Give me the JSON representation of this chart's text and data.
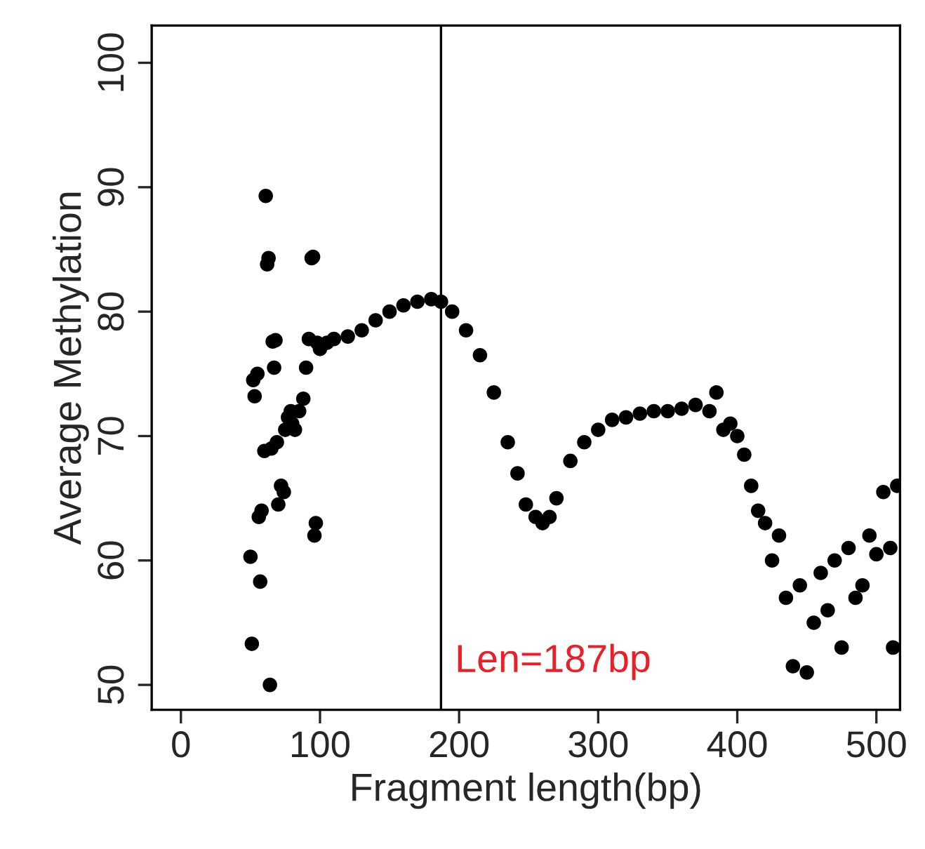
{
  "chart_data": {
    "type": "scatter",
    "xlabel": "Fragment length(bp)",
    "ylabel": "Average Methylation",
    "x": [
      50,
      51,
      52,
      53,
      55,
      56,
      57,
      58,
      60,
      61,
      62,
      63,
      64,
      65,
      66,
      67,
      68,
      69,
      70,
      72,
      74,
      75,
      77,
      79,
      80,
      82,
      85,
      88,
      90,
      92,
      94,
      95,
      96,
      97,
      98,
      100,
      105,
      110,
      120,
      130,
      140,
      150,
      160,
      170,
      180,
      187,
      195,
      205,
      215,
      225,
      235,
      242,
      248,
      255,
      260,
      265,
      270,
      280,
      290,
      300,
      310,
      320,
      330,
      340,
      350,
      360,
      370,
      380,
      385,
      390,
      395,
      400,
      405,
      410,
      415,
      420,
      425,
      430,
      435,
      440,
      445,
      450,
      455,
      460,
      465,
      470,
      475,
      480,
      485,
      490,
      495,
      500,
      505,
      510,
      512,
      515
    ],
    "series": [
      {
        "color": "#000000",
        "values": [
          60.3,
          53.3,
          74.5,
          73.2,
          75,
          63.5,
          58.3,
          64,
          68.8,
          89.3,
          83.8,
          84.3,
          50,
          69,
          77.6,
          75.5,
          77.7,
          69.5,
          64.5,
          66,
          65.5,
          70.5,
          71.5,
          72,
          71,
          70.5,
          72,
          73,
          75.5,
          77.8,
          84.3,
          84.4,
          62,
          63,
          77.5,
          77,
          77.5,
          77.8,
          78,
          78.5,
          79.3,
          80,
          80.5,
          80.8,
          81,
          80.8,
          80,
          78.5,
          76.5,
          73.5,
          69.5,
          67,
          64.5,
          63.5,
          63,
          63.5,
          65,
          68,
          69.5,
          70.5,
          71.3,
          71.5,
          71.8,
          72,
          72,
          72.2,
          72.5,
          72,
          73.5,
          70.5,
          71,
          70,
          68.5,
          66,
          64,
          63,
          60,
          62,
          57,
          51.5,
          58,
          51,
          55,
          59,
          56,
          60,
          53,
          61,
          57,
          58,
          62,
          60.5,
          65.5,
          61,
          53,
          66
        ]
      }
    ],
    "xlim": [
      -21,
      517
    ],
    "ylim": [
      48,
      103
    ],
    "xticks": [
      0,
      100,
      200,
      300,
      400,
      500
    ],
    "yticks": [
      50,
      60,
      70,
      80,
      90,
      100
    ],
    "marker": "circle",
    "grid": false,
    "ref_lines": [
      {
        "axis": "x",
        "value": 187,
        "label": "Len=187bp",
        "color": "#000000"
      }
    ]
  }
}
